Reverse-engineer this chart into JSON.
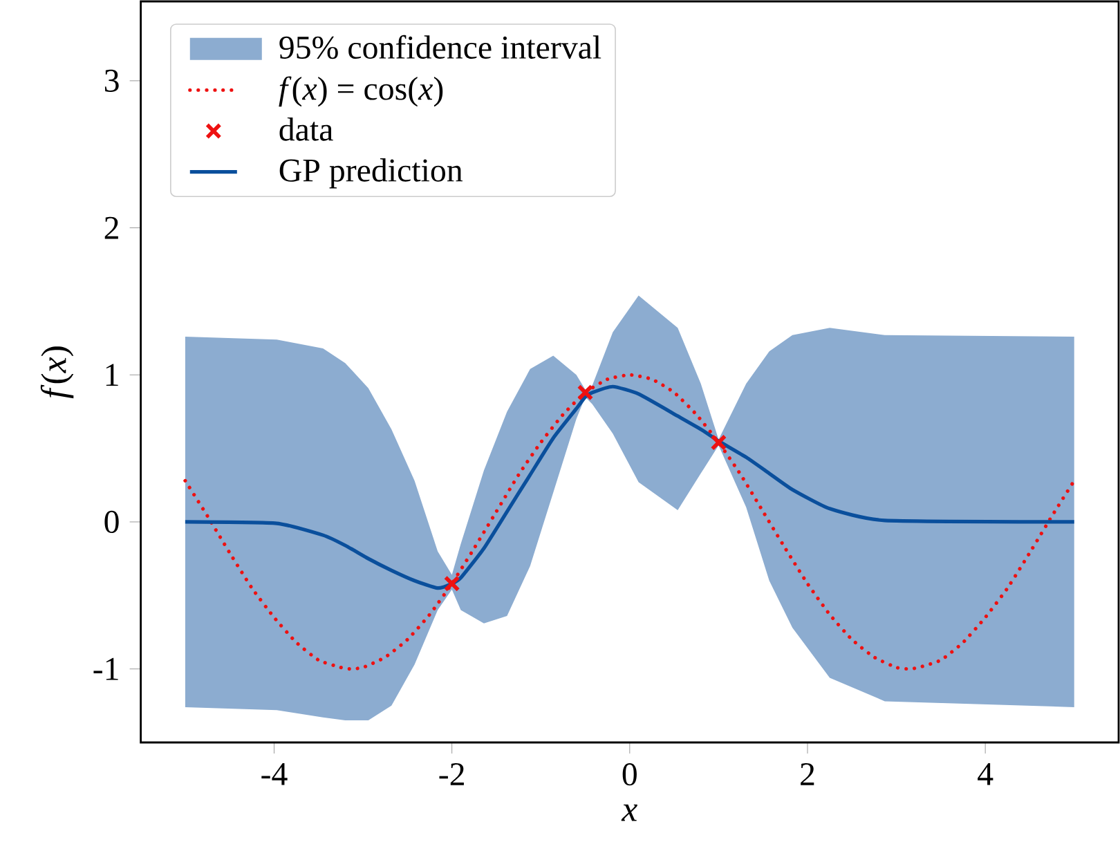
{
  "chart_data": {
    "type": "line",
    "xlabel": "x",
    "ylabel": "*f*(*x*)",
    "xlim": [
      -5.5,
      5.5
    ],
    "ylim": [
      -1.5,
      3.54
    ],
    "xticks": [
      -4,
      -2,
      0,
      2,
      4
    ],
    "yticks": [
      -1,
      0,
      1,
      2,
      3
    ],
    "legend": "top left",
    "annotations": [
      "95% confidence interval"
    ],
    "series": [
      {
        "name": "*f*(*x*) = cos(*x*)",
        "line_style": "dotted",
        "color": "#ee1111",
        "x": [
          -5,
          -4.75,
          -4.5,
          -4.25,
          -4,
          -3.75,
          -3.5,
          -3.25,
          -3.14,
          -3,
          -2.75,
          -2.5,
          -2.25,
          -2,
          -1.75,
          -1.5,
          -1.25,
          -1,
          -0.75,
          -0.5,
          -0.25,
          0,
          0.25,
          0.5,
          0.75,
          1,
          1.25,
          1.5,
          1.75,
          2,
          2.25,
          2.5,
          2.75,
          3,
          3.14,
          3.25,
          3.5,
          3.75,
          4,
          4.25,
          4.5,
          4.75,
          5
        ],
        "values": [
          0.28,
          0.04,
          -0.21,
          -0.45,
          -0.65,
          -0.82,
          -0.94,
          -0.99,
          -1.0,
          -0.99,
          -0.92,
          -0.8,
          -0.63,
          -0.42,
          -0.18,
          0.07,
          0.32,
          0.54,
          0.73,
          0.88,
          0.97,
          1.0,
          0.97,
          0.88,
          0.73,
          0.54,
          0.32,
          0.07,
          -0.18,
          -0.42,
          -0.63,
          -0.8,
          -0.92,
          -0.99,
          -1.0,
          -0.99,
          -0.94,
          -0.82,
          -0.65,
          -0.45,
          -0.21,
          0.04,
          0.28
        ]
      },
      {
        "name": "data",
        "type": "scatter",
        "marker": "cross",
        "color": "#ee1111",
        "x": [
          -2,
          -0.5,
          1
        ],
        "values": [
          -0.42,
          0.88,
          0.54
        ]
      },
      {
        "name": "GP prediction",
        "line_style": "solid",
        "color": "#0a4f9c",
        "x": [
          -5,
          -3.97,
          -3.45,
          -3.2,
          -2.94,
          -2.68,
          -2.42,
          -2.16,
          -2,
          -1.9,
          -1.64,
          -1.38,
          -1.12,
          -0.86,
          -0.6,
          -0.5,
          -0.42,
          -0.19,
          0.1,
          0.54,
          0.8,
          1.0,
          1.31,
          1.57,
          1.83,
          2.25,
          2.87,
          5
        ],
        "values": [
          0,
          -0.01,
          -0.09,
          -0.16,
          -0.25,
          -0.33,
          -0.4,
          -0.45,
          -0.42,
          -0.38,
          -0.18,
          0.07,
          0.32,
          0.57,
          0.77,
          0.85,
          0.88,
          0.92,
          0.87,
          0.72,
          0.63,
          0.55,
          0.44,
          0.33,
          0.22,
          0.09,
          0.01,
          0
        ],
        "lower": [
          -1.26,
          -1.28,
          -1.33,
          -1.35,
          -1.35,
          -1.25,
          -0.97,
          -0.6,
          -0.46,
          -0.6,
          -0.69,
          -0.64,
          -0.3,
          0.2,
          0.7,
          0.85,
          0.8,
          0.6,
          0.27,
          0.08,
          0.33,
          0.52,
          0.1,
          -0.4,
          -0.72,
          -1.06,
          -1.22,
          -1.26
        ],
        "upper": [
          1.26,
          1.24,
          1.18,
          1.08,
          0.91,
          0.63,
          0.28,
          -0.2,
          -0.36,
          -0.15,
          0.35,
          0.75,
          1.04,
          1.13,
          1.0,
          0.9,
          0.93,
          1.29,
          1.54,
          1.32,
          0.94,
          0.56,
          0.94,
          1.16,
          1.27,
          1.32,
          1.27,
          1.26
        ]
      }
    ]
  }
}
